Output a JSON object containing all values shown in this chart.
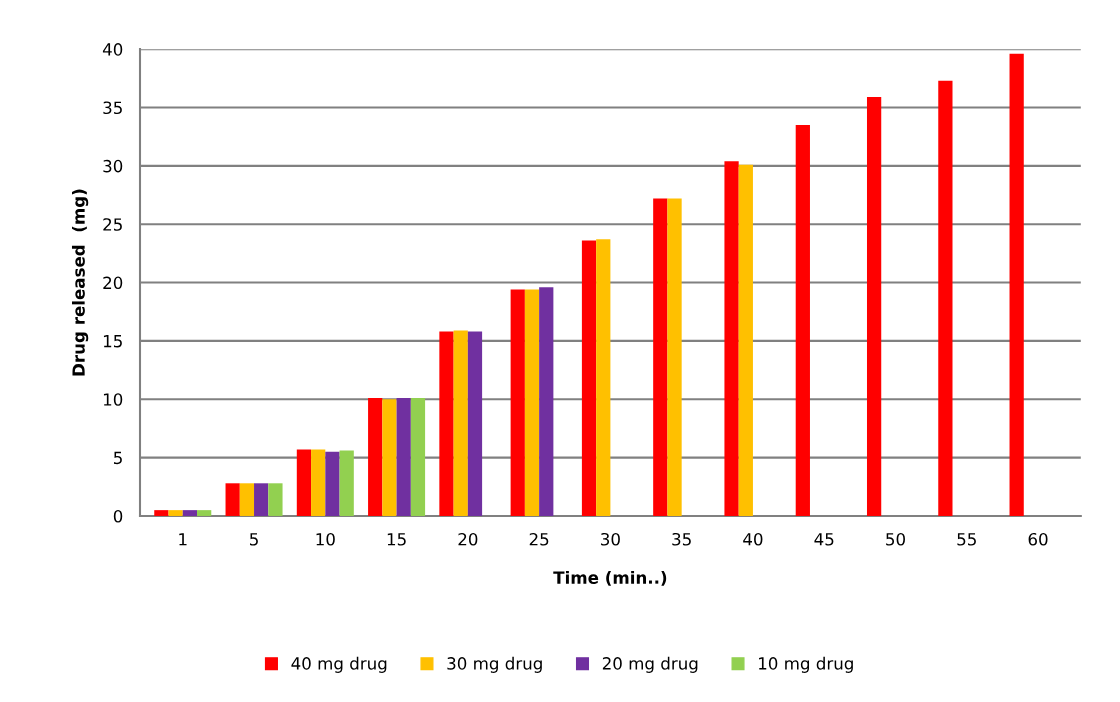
{
  "chart_data": {
    "type": "bar",
    "xlabel": "Time (min..)",
    "ylabel": "Drug released  (mg)",
    "categories": [
      "1",
      "5",
      "10",
      "15",
      "20",
      "25",
      "30",
      "35",
      "40",
      "45",
      "50",
      "55",
      "60"
    ],
    "series": [
      {
        "name": "40 mg drug",
        "color": "#ff0000",
        "values": [
          0.5,
          2.8,
          5.7,
          10.1,
          15.8,
          19.4,
          23.6,
          27.2,
          30.4,
          33.5,
          35.9,
          37.3,
          39.6
        ]
      },
      {
        "name": "30 mg drug",
        "color": "#ffc000",
        "values": [
          0.5,
          2.8,
          5.7,
          10.0,
          15.9,
          19.4,
          23.7,
          27.2,
          30.1,
          null,
          null,
          null,
          null
        ]
      },
      {
        "name": "20 mg drug",
        "color": "#7030a0",
        "values": [
          0.5,
          2.8,
          5.5,
          10.1,
          15.8,
          19.6,
          null,
          null,
          null,
          null,
          null,
          null,
          null
        ]
      },
      {
        "name": "10 mg drug",
        "color": "#92d050",
        "values": [
          0.5,
          2.8,
          5.6,
          10.1,
          null,
          null,
          null,
          null,
          null,
          null,
          null,
          null,
          null
        ]
      }
    ],
    "ylim": [
      0,
      40
    ],
    "yticks": [
      0,
      5,
      10,
      15,
      20,
      25,
      30,
      35,
      40
    ],
    "grid": "y",
    "legend": "bottom"
  }
}
